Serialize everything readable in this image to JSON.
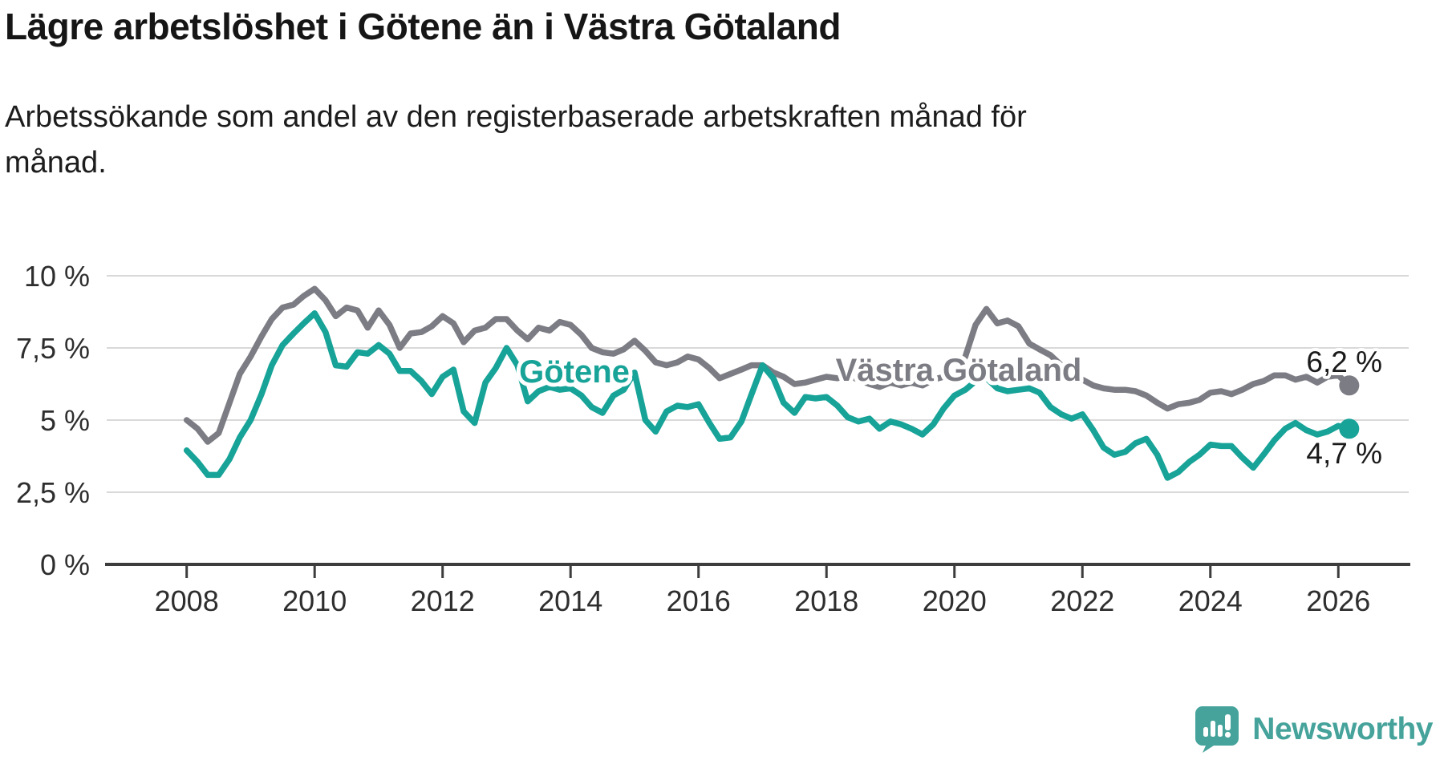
{
  "header": {
    "title": "Lägre arbetslöshet i Götene än i Västra Götaland",
    "subtitle_lines": [
      "Arbetssökande som andel av den registerbaserade arbetskraften månad för",
      "månad."
    ]
  },
  "chart_data": {
    "type": "line",
    "title": "Lägre arbetslöshet i Götene än i Västra Götaland",
    "xlabel": "",
    "ylabel": "",
    "x_axis": {
      "domain": [
        2006.75,
        2027.1
      ],
      "tick_years": [
        2008,
        2010,
        2012,
        2014,
        2016,
        2018,
        2020,
        2022,
        2024,
        2026
      ]
    },
    "y_axis": {
      "domain": [
        0,
        10
      ],
      "grid": true,
      "ticks": [
        {
          "value": 0,
          "label": "0 %"
        },
        {
          "value": 2.5,
          "label": "2,5 %"
        },
        {
          "value": 5,
          "label": "5 %"
        },
        {
          "value": 7.5,
          "label": "7,5 %"
        },
        {
          "value": 10,
          "label": "10 %"
        }
      ]
    },
    "legend_position": "inline-labels-on-lines",
    "series": [
      {
        "name": "Västra Götaland",
        "color": "#7c7c84",
        "end_label": "6,2 %",
        "end_value": 6.2,
        "points": [
          [
            2008.0,
            5.0
          ],
          [
            2008.17,
            4.7
          ],
          [
            2008.33,
            4.25
          ],
          [
            2008.5,
            4.55
          ],
          [
            2008.67,
            5.6
          ],
          [
            2008.83,
            6.6
          ],
          [
            2009.0,
            7.2
          ],
          [
            2009.17,
            7.9
          ],
          [
            2009.33,
            8.5
          ],
          [
            2009.5,
            8.9
          ],
          [
            2009.67,
            9.0
          ],
          [
            2009.83,
            9.3
          ],
          [
            2010.0,
            9.55
          ],
          [
            2010.17,
            9.15
          ],
          [
            2010.33,
            8.6
          ],
          [
            2010.5,
            8.9
          ],
          [
            2010.67,
            8.8
          ],
          [
            2010.83,
            8.2
          ],
          [
            2011.0,
            8.8
          ],
          [
            2011.17,
            8.3
          ],
          [
            2011.33,
            7.5
          ],
          [
            2011.5,
            8.0
          ],
          [
            2011.67,
            8.05
          ],
          [
            2011.83,
            8.25
          ],
          [
            2012.0,
            8.6
          ],
          [
            2012.17,
            8.35
          ],
          [
            2012.33,
            7.7
          ],
          [
            2012.5,
            8.1
          ],
          [
            2012.67,
            8.2
          ],
          [
            2012.83,
            8.5
          ],
          [
            2013.0,
            8.5
          ],
          [
            2013.17,
            8.1
          ],
          [
            2013.33,
            7.8
          ],
          [
            2013.5,
            8.2
          ],
          [
            2013.67,
            8.1
          ],
          [
            2013.83,
            8.4
          ],
          [
            2014.0,
            8.3
          ],
          [
            2014.17,
            7.95
          ],
          [
            2014.33,
            7.5
          ],
          [
            2014.5,
            7.35
          ],
          [
            2014.67,
            7.3
          ],
          [
            2014.83,
            7.45
          ],
          [
            2015.0,
            7.75
          ],
          [
            2015.17,
            7.4
          ],
          [
            2015.33,
            7.0
          ],
          [
            2015.5,
            6.9
          ],
          [
            2015.67,
            7.0
          ],
          [
            2015.83,
            7.2
          ],
          [
            2016.0,
            7.1
          ],
          [
            2016.17,
            6.8
          ],
          [
            2016.33,
            6.45
          ],
          [
            2016.5,
            6.6
          ],
          [
            2016.67,
            6.75
          ],
          [
            2016.83,
            6.9
          ],
          [
            2017.0,
            6.9
          ],
          [
            2017.17,
            6.65
          ],
          [
            2017.33,
            6.5
          ],
          [
            2017.5,
            6.25
          ],
          [
            2017.67,
            6.3
          ],
          [
            2017.83,
            6.4
          ],
          [
            2018.0,
            6.5
          ],
          [
            2018.17,
            6.45
          ],
          [
            2018.33,
            6.55
          ],
          [
            2018.5,
            6.4
          ],
          [
            2018.67,
            6.25
          ],
          [
            2018.83,
            6.15
          ],
          [
            2019.0,
            6.3
          ],
          [
            2019.17,
            6.2
          ],
          [
            2019.33,
            6.3
          ],
          [
            2019.5,
            6.2
          ],
          [
            2019.67,
            6.4
          ],
          [
            2019.83,
            6.5
          ],
          [
            2020.0,
            6.4
          ],
          [
            2020.17,
            7.2
          ],
          [
            2020.33,
            8.3
          ],
          [
            2020.5,
            8.85
          ],
          [
            2020.67,
            8.35
          ],
          [
            2020.83,
            8.45
          ],
          [
            2021.0,
            8.25
          ],
          [
            2021.17,
            7.65
          ],
          [
            2021.33,
            7.45
          ],
          [
            2021.5,
            7.25
          ],
          [
            2021.67,
            6.9
          ],
          [
            2021.83,
            6.6
          ],
          [
            2022.0,
            6.4
          ],
          [
            2022.17,
            6.2
          ],
          [
            2022.33,
            6.1
          ],
          [
            2022.5,
            6.05
          ],
          [
            2022.67,
            6.05
          ],
          [
            2022.83,
            6.0
          ],
          [
            2023.0,
            5.85
          ],
          [
            2023.17,
            5.6
          ],
          [
            2023.33,
            5.4
          ],
          [
            2023.5,
            5.55
          ],
          [
            2023.67,
            5.6
          ],
          [
            2023.83,
            5.7
          ],
          [
            2024.0,
            5.95
          ],
          [
            2024.17,
            6.0
          ],
          [
            2024.33,
            5.9
          ],
          [
            2024.5,
            6.05
          ],
          [
            2024.67,
            6.25
          ],
          [
            2024.83,
            6.35
          ],
          [
            2025.0,
            6.55
          ],
          [
            2025.17,
            6.55
          ],
          [
            2025.33,
            6.4
          ],
          [
            2025.5,
            6.5
          ],
          [
            2025.67,
            6.3
          ],
          [
            2025.83,
            6.5
          ],
          [
            2026.0,
            6.55
          ],
          [
            2026.17,
            6.2
          ]
        ]
      },
      {
        "name": "Götene",
        "color": "#17a398",
        "end_label": "4,7 %",
        "end_value": 4.7,
        "points": [
          [
            2008.0,
            3.95
          ],
          [
            2008.17,
            3.55
          ],
          [
            2008.33,
            3.1
          ],
          [
            2008.5,
            3.1
          ],
          [
            2008.67,
            3.65
          ],
          [
            2008.83,
            4.4
          ],
          [
            2009.0,
            5.0
          ],
          [
            2009.17,
            5.9
          ],
          [
            2009.33,
            6.9
          ],
          [
            2009.5,
            7.6
          ],
          [
            2009.67,
            8.0
          ],
          [
            2009.83,
            8.35
          ],
          [
            2010.0,
            8.7
          ],
          [
            2010.17,
            8.05
          ],
          [
            2010.33,
            6.9
          ],
          [
            2010.5,
            6.85
          ],
          [
            2010.67,
            7.35
          ],
          [
            2010.83,
            7.3
          ],
          [
            2011.0,
            7.6
          ],
          [
            2011.17,
            7.3
          ],
          [
            2011.33,
            6.7
          ],
          [
            2011.5,
            6.7
          ],
          [
            2011.67,
            6.35
          ],
          [
            2011.83,
            5.9
          ],
          [
            2012.0,
            6.5
          ],
          [
            2012.17,
            6.75
          ],
          [
            2012.33,
            5.3
          ],
          [
            2012.5,
            4.9
          ],
          [
            2012.67,
            6.3
          ],
          [
            2012.83,
            6.8
          ],
          [
            2013.0,
            7.5
          ],
          [
            2013.17,
            6.9
          ],
          [
            2013.33,
            5.65
          ],
          [
            2013.5,
            6.0
          ],
          [
            2013.67,
            6.15
          ],
          [
            2013.83,
            6.05
          ],
          [
            2014.0,
            6.1
          ],
          [
            2014.17,
            5.85
          ],
          [
            2014.33,
            5.45
          ],
          [
            2014.5,
            5.25
          ],
          [
            2014.67,
            5.85
          ],
          [
            2014.83,
            6.05
          ],
          [
            2015.0,
            6.65
          ],
          [
            2015.17,
            5.0
          ],
          [
            2015.33,
            4.6
          ],
          [
            2015.5,
            5.3
          ],
          [
            2015.67,
            5.5
          ],
          [
            2015.83,
            5.45
          ],
          [
            2016.0,
            5.55
          ],
          [
            2016.17,
            4.9
          ],
          [
            2016.33,
            4.35
          ],
          [
            2016.5,
            4.4
          ],
          [
            2016.67,
            4.95
          ],
          [
            2016.83,
            5.9
          ],
          [
            2017.0,
            6.9
          ],
          [
            2017.17,
            6.45
          ],
          [
            2017.33,
            5.6
          ],
          [
            2017.5,
            5.25
          ],
          [
            2017.67,
            5.8
          ],
          [
            2017.83,
            5.75
          ],
          [
            2018.0,
            5.8
          ],
          [
            2018.17,
            5.5
          ],
          [
            2018.33,
            5.1
          ],
          [
            2018.5,
            4.95
          ],
          [
            2018.67,
            5.05
          ],
          [
            2018.83,
            4.7
          ],
          [
            2019.0,
            4.95
          ],
          [
            2019.17,
            4.85
          ],
          [
            2019.33,
            4.7
          ],
          [
            2019.5,
            4.5
          ],
          [
            2019.67,
            4.85
          ],
          [
            2019.83,
            5.4
          ],
          [
            2020.0,
            5.85
          ],
          [
            2020.17,
            6.05
          ],
          [
            2020.33,
            6.35
          ],
          [
            2020.5,
            6.45
          ],
          [
            2020.67,
            6.1
          ],
          [
            2020.83,
            6.0
          ],
          [
            2021.0,
            6.05
          ],
          [
            2021.17,
            6.1
          ],
          [
            2021.33,
            5.95
          ],
          [
            2021.5,
            5.45
          ],
          [
            2021.67,
            5.2
          ],
          [
            2021.83,
            5.05
          ],
          [
            2022.0,
            5.2
          ],
          [
            2022.17,
            4.65
          ],
          [
            2022.33,
            4.05
          ],
          [
            2022.5,
            3.8
          ],
          [
            2022.67,
            3.9
          ],
          [
            2022.83,
            4.2
          ],
          [
            2023.0,
            4.35
          ],
          [
            2023.17,
            3.8
          ],
          [
            2023.33,
            3.0
          ],
          [
            2023.5,
            3.2
          ],
          [
            2023.67,
            3.55
          ],
          [
            2023.83,
            3.8
          ],
          [
            2024.0,
            4.15
          ],
          [
            2024.17,
            4.1
          ],
          [
            2024.33,
            4.1
          ],
          [
            2024.5,
            3.7
          ],
          [
            2024.67,
            3.35
          ],
          [
            2024.83,
            3.8
          ],
          [
            2025.0,
            4.3
          ],
          [
            2025.17,
            4.7
          ],
          [
            2025.33,
            4.9
          ],
          [
            2025.5,
            4.65
          ],
          [
            2025.67,
            4.5
          ],
          [
            2025.83,
            4.6
          ],
          [
            2026.0,
            4.8
          ],
          [
            2026.17,
            4.7
          ]
        ]
      }
    ]
  },
  "branding": {
    "logo_text": "Newsworthy",
    "logo_color": "#45a39b",
    "logo_icon": "speech-bubble-bar-chart-icon"
  }
}
